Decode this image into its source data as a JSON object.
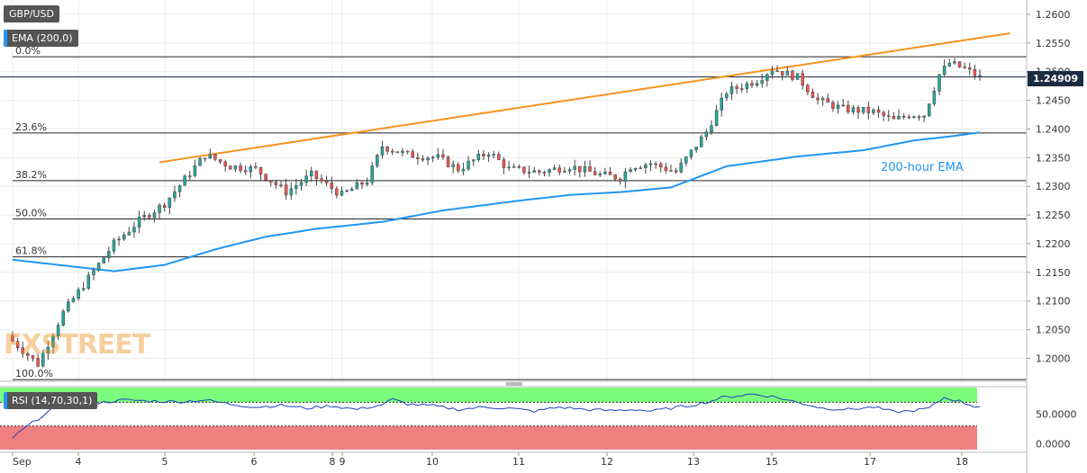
{
  "header": {
    "symbol": "GBP/USD",
    "indicator": "EMA (200,0)",
    "rsi_indicator": "RSI (14,70,30,1)",
    "last_price": "1.24909"
  },
  "watermark": "FXSTREET",
  "colors": {
    "up_candle": "#26a69a",
    "down_candle": "#ef5350",
    "ema": "#2196f3",
    "trendline": "#f7931e",
    "rsi_line": "#1f3fbf",
    "rsi_overbought_zone": "#7cfc7c",
    "rsi_oversold_zone": "#f08080"
  },
  "chart_data": [
    {
      "type": "candlestick",
      "timeframe": "hourly",
      "x_ticks": [
        "Sep",
        "4",
        "5",
        "6",
        "8",
        "9",
        "10",
        "11",
        "12",
        "13",
        "15",
        "17",
        "18"
      ],
      "y_ticks": [
        "1.2000",
        "1.2050",
        "1.2100",
        "1.2150",
        "1.2200",
        "1.2250",
        "1.2300",
        "1.2350",
        "1.2400",
        "1.2450",
        "1.2500",
        "1.2550",
        "1.2600"
      ],
      "ylim": [
        1.196,
        1.2625
      ],
      "last_price": 1.24909,
      "close_path": [
        [
          0,
          1.203
        ],
        [
          5,
          1.199
        ],
        [
          10,
          1.208
        ],
        [
          15,
          1.214
        ],
        [
          20,
          1.22
        ],
        [
          25,
          1.224
        ],
        [
          30,
          1.227
        ],
        [
          38,
          1.2355
        ],
        [
          43,
          1.2335
        ],
        [
          48,
          1.233
        ],
        [
          54,
          1.229
        ],
        [
          59,
          1.232
        ],
        [
          65,
          1.2285
        ],
        [
          70,
          1.231
        ],
        [
          73,
          1.237
        ],
        [
          78,
          1.2355
        ],
        [
          84,
          1.235
        ],
        [
          88,
          1.233
        ],
        [
          94,
          1.236
        ],
        [
          98,
          1.233
        ],
        [
          104,
          1.2325
        ],
        [
          110,
          1.2335
        ],
        [
          116,
          1.232
        ],
        [
          120,
          1.2315
        ],
        [
          122,
          1.2335
        ],
        [
          126,
          1.234
        ],
        [
          131,
          1.2325
        ],
        [
          134,
          1.236
        ],
        [
          137,
          1.2395
        ],
        [
          141,
          1.2465
        ],
        [
          147,
          1.2485
        ],
        [
          150,
          1.2505
        ],
        [
          155,
          1.249
        ],
        [
          159,
          1.245
        ],
        [
          164,
          1.2435
        ],
        [
          170,
          1.243
        ],
        [
          174,
          1.2415
        ],
        [
          177,
          1.2425
        ],
        [
          180,
          1.2425
        ],
        [
          183,
          1.2495
        ],
        [
          185,
          1.2515
        ],
        [
          188,
          1.2505
        ],
        [
          191,
          1.249
        ]
      ],
      "ema_200": {
        "name": "200-hour EMA",
        "values": [
          [
            0,
            1.2172
          ],
          [
            20,
            1.2152
          ],
          [
            30,
            1.2163
          ],
          [
            40,
            1.219
          ],
          [
            50,
            1.2212
          ],
          [
            60,
            1.2226
          ],
          [
            73,
            1.2238
          ],
          [
            85,
            1.2258
          ],
          [
            100,
            1.2275
          ],
          [
            110,
            1.2285
          ],
          [
            120,
            1.229
          ],
          [
            130,
            1.2298
          ],
          [
            141,
            1.2335
          ],
          [
            155,
            1.2352
          ],
          [
            168,
            1.2363
          ],
          [
            178,
            1.238
          ],
          [
            186,
            1.2388
          ],
          [
            191,
            1.2394
          ]
        ]
      },
      "trendline": [
        [
          29,
          1.2342
        ],
        [
          197,
          1.2567
        ]
      ],
      "fibonacci": [
        {
          "label": "0.0%",
          "level": 1.2526
        },
        {
          "label": "23.6%",
          "level": 1.2393
        },
        {
          "label": "38.2%",
          "level": 1.231
        },
        {
          "label": "50.0%",
          "level": 1.2243
        },
        {
          "label": "61.8%",
          "level": 1.2177
        },
        {
          "label": "100.0%",
          "level": 1.1963
        }
      ]
    },
    {
      "type": "line",
      "name": "RSI (14,70,30,1)",
      "y_ticks": [
        "0.0000",
        "50.0000"
      ],
      "ylim": [
        -10,
        95
      ],
      "overbought": 70,
      "oversold": 30,
      "values": [
        [
          0,
          10
        ],
        [
          3,
          30
        ],
        [
          8,
          60
        ],
        [
          13,
          65
        ],
        [
          18,
          70
        ],
        [
          22,
          74
        ],
        [
          28,
          72
        ],
        [
          33,
          71
        ],
        [
          38,
          74
        ],
        [
          43,
          67
        ],
        [
          48,
          62
        ],
        [
          53,
          65
        ],
        [
          58,
          60
        ],
        [
          63,
          64
        ],
        [
          68,
          58
        ],
        [
          73,
          66
        ],
        [
          75,
          75
        ],
        [
          78,
          67
        ],
        [
          83,
          64
        ],
        [
          88,
          58
        ],
        [
          93,
          62
        ],
        [
          98,
          60
        ],
        [
          103,
          55
        ],
        [
          108,
          62
        ],
        [
          113,
          58
        ],
        [
          118,
          56
        ],
        [
          123,
          58
        ],
        [
          126,
          55
        ],
        [
          130,
          60
        ],
        [
          134,
          65
        ],
        [
          137,
          70
        ],
        [
          140,
          78
        ],
        [
          146,
          84
        ],
        [
          150,
          80
        ],
        [
          155,
          70
        ],
        [
          160,
          60
        ],
        [
          165,
          58
        ],
        [
          170,
          62
        ],
        [
          174,
          54
        ],
        [
          177,
          55
        ],
        [
          181,
          60
        ],
        [
          184,
          78
        ],
        [
          187,
          72
        ],
        [
          190,
          63
        ],
        [
          192,
          64
        ]
      ]
    }
  ]
}
